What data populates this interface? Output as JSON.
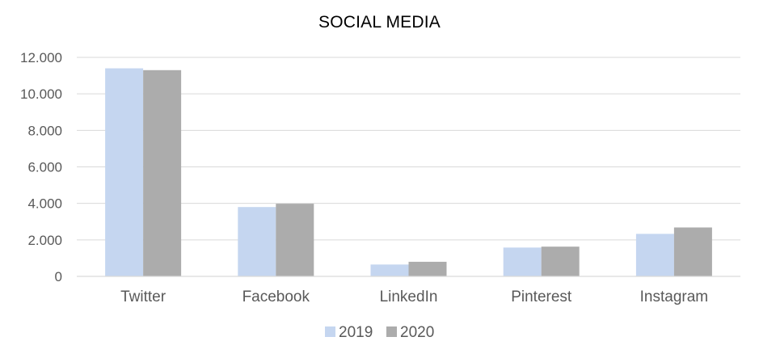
{
  "chart_data": {
    "type": "bar",
    "title": "SOCIAL MEDIA",
    "categories": [
      "Twitter",
      "Facebook",
      "LinkedIn",
      "Pinterest",
      "Instagram"
    ],
    "series": [
      {
        "name": "2019",
        "color": "#C5D6F0",
        "values": [
          11400,
          3800,
          650,
          1580,
          2330
        ]
      },
      {
        "name": "2020",
        "color": "#ACACAC",
        "values": [
          11300,
          3980,
          800,
          1630,
          2680
        ]
      }
    ],
    "yticks": [
      "0",
      "2.000",
      "4.000",
      "6.000",
      "8.000",
      "10.000",
      "12.000"
    ],
    "ylim": [
      0,
      12000
    ],
    "grid": true,
    "legend": "bottom"
  }
}
